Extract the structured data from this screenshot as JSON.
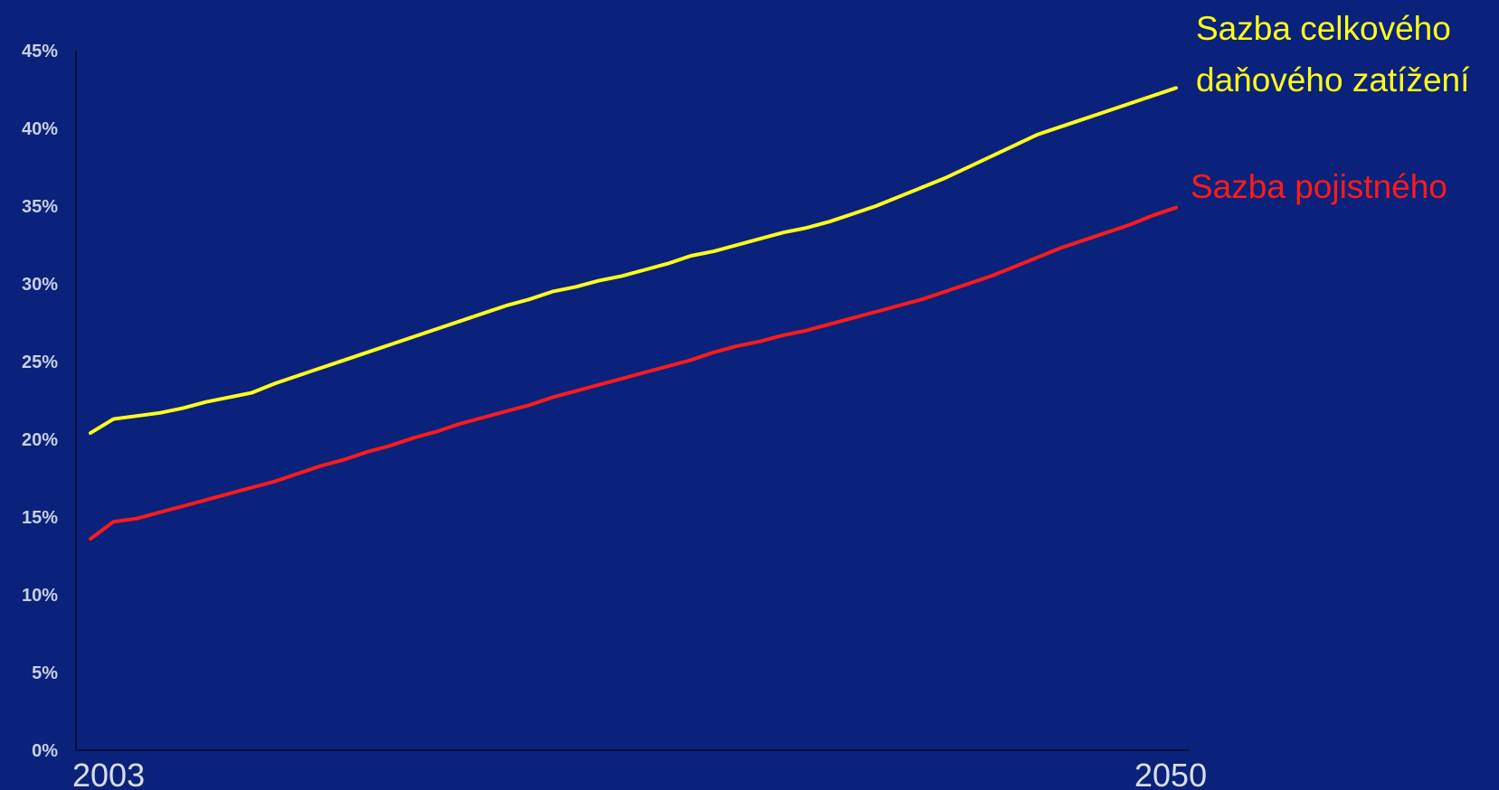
{
  "chart_data": {
    "type": "line",
    "x": [
      2003,
      2004,
      2005,
      2006,
      2007,
      2008,
      2009,
      2010,
      2011,
      2012,
      2013,
      2014,
      2015,
      2016,
      2017,
      2018,
      2019,
      2020,
      2021,
      2022,
      2023,
      2024,
      2025,
      2026,
      2027,
      2028,
      2029,
      2030,
      2031,
      2032,
      2033,
      2034,
      2035,
      2036,
      2037,
      2038,
      2039,
      2040,
      2041,
      2042,
      2043,
      2044,
      2045,
      2046,
      2047,
      2048,
      2049,
      2050
    ],
    "x_tick_labels": [
      "2003",
      "2050"
    ],
    "y_tick_labels": [
      "0%",
      "5%",
      "10%",
      "15%",
      "20%",
      "25%",
      "30%",
      "35%",
      "40%",
      "45%"
    ],
    "ylim": [
      0,
      45
    ],
    "y_ticks": [
      0,
      5,
      10,
      15,
      20,
      25,
      30,
      35,
      40,
      45
    ],
    "grid": false,
    "series": [
      {
        "name": "Sazba celkového daňového zatížení",
        "label_lines": [
          "Sazba celkového",
          "daňového zatížení"
        ],
        "color": "#ffff1a",
        "values": [
          20.4,
          21.3,
          21.5,
          21.7,
          22.0,
          22.4,
          22.7,
          23.0,
          23.6,
          24.1,
          24.6,
          25.1,
          25.6,
          26.1,
          26.6,
          27.1,
          27.6,
          28.1,
          28.6,
          29.0,
          29.5,
          29.8,
          30.2,
          30.5,
          30.9,
          31.3,
          31.8,
          32.1,
          32.5,
          32.9,
          33.3,
          33.6,
          34.0,
          34.5,
          35.0,
          35.6,
          36.2,
          36.8,
          37.5,
          38.2,
          38.9,
          39.6,
          40.1,
          40.6,
          41.1,
          41.6,
          42.1,
          42.6
        ]
      },
      {
        "name": "Sazba pojistného",
        "label_lines": [
          "Sazba pojistného"
        ],
        "color": "#ff1a1a",
        "values": [
          13.6,
          14.7,
          14.9,
          15.3,
          15.7,
          16.1,
          16.5,
          16.9,
          17.3,
          17.8,
          18.3,
          18.7,
          19.2,
          19.6,
          20.1,
          20.5,
          21.0,
          21.4,
          21.8,
          22.2,
          22.7,
          23.1,
          23.5,
          23.9,
          24.3,
          24.7,
          25.1,
          25.6,
          26.0,
          26.3,
          26.7,
          27.0,
          27.4,
          27.8,
          28.2,
          28.6,
          29.0,
          29.5,
          30.0,
          30.5,
          31.1,
          31.7,
          32.3,
          32.8,
          33.3,
          33.8,
          34.4,
          34.9
        ]
      }
    ]
  }
}
